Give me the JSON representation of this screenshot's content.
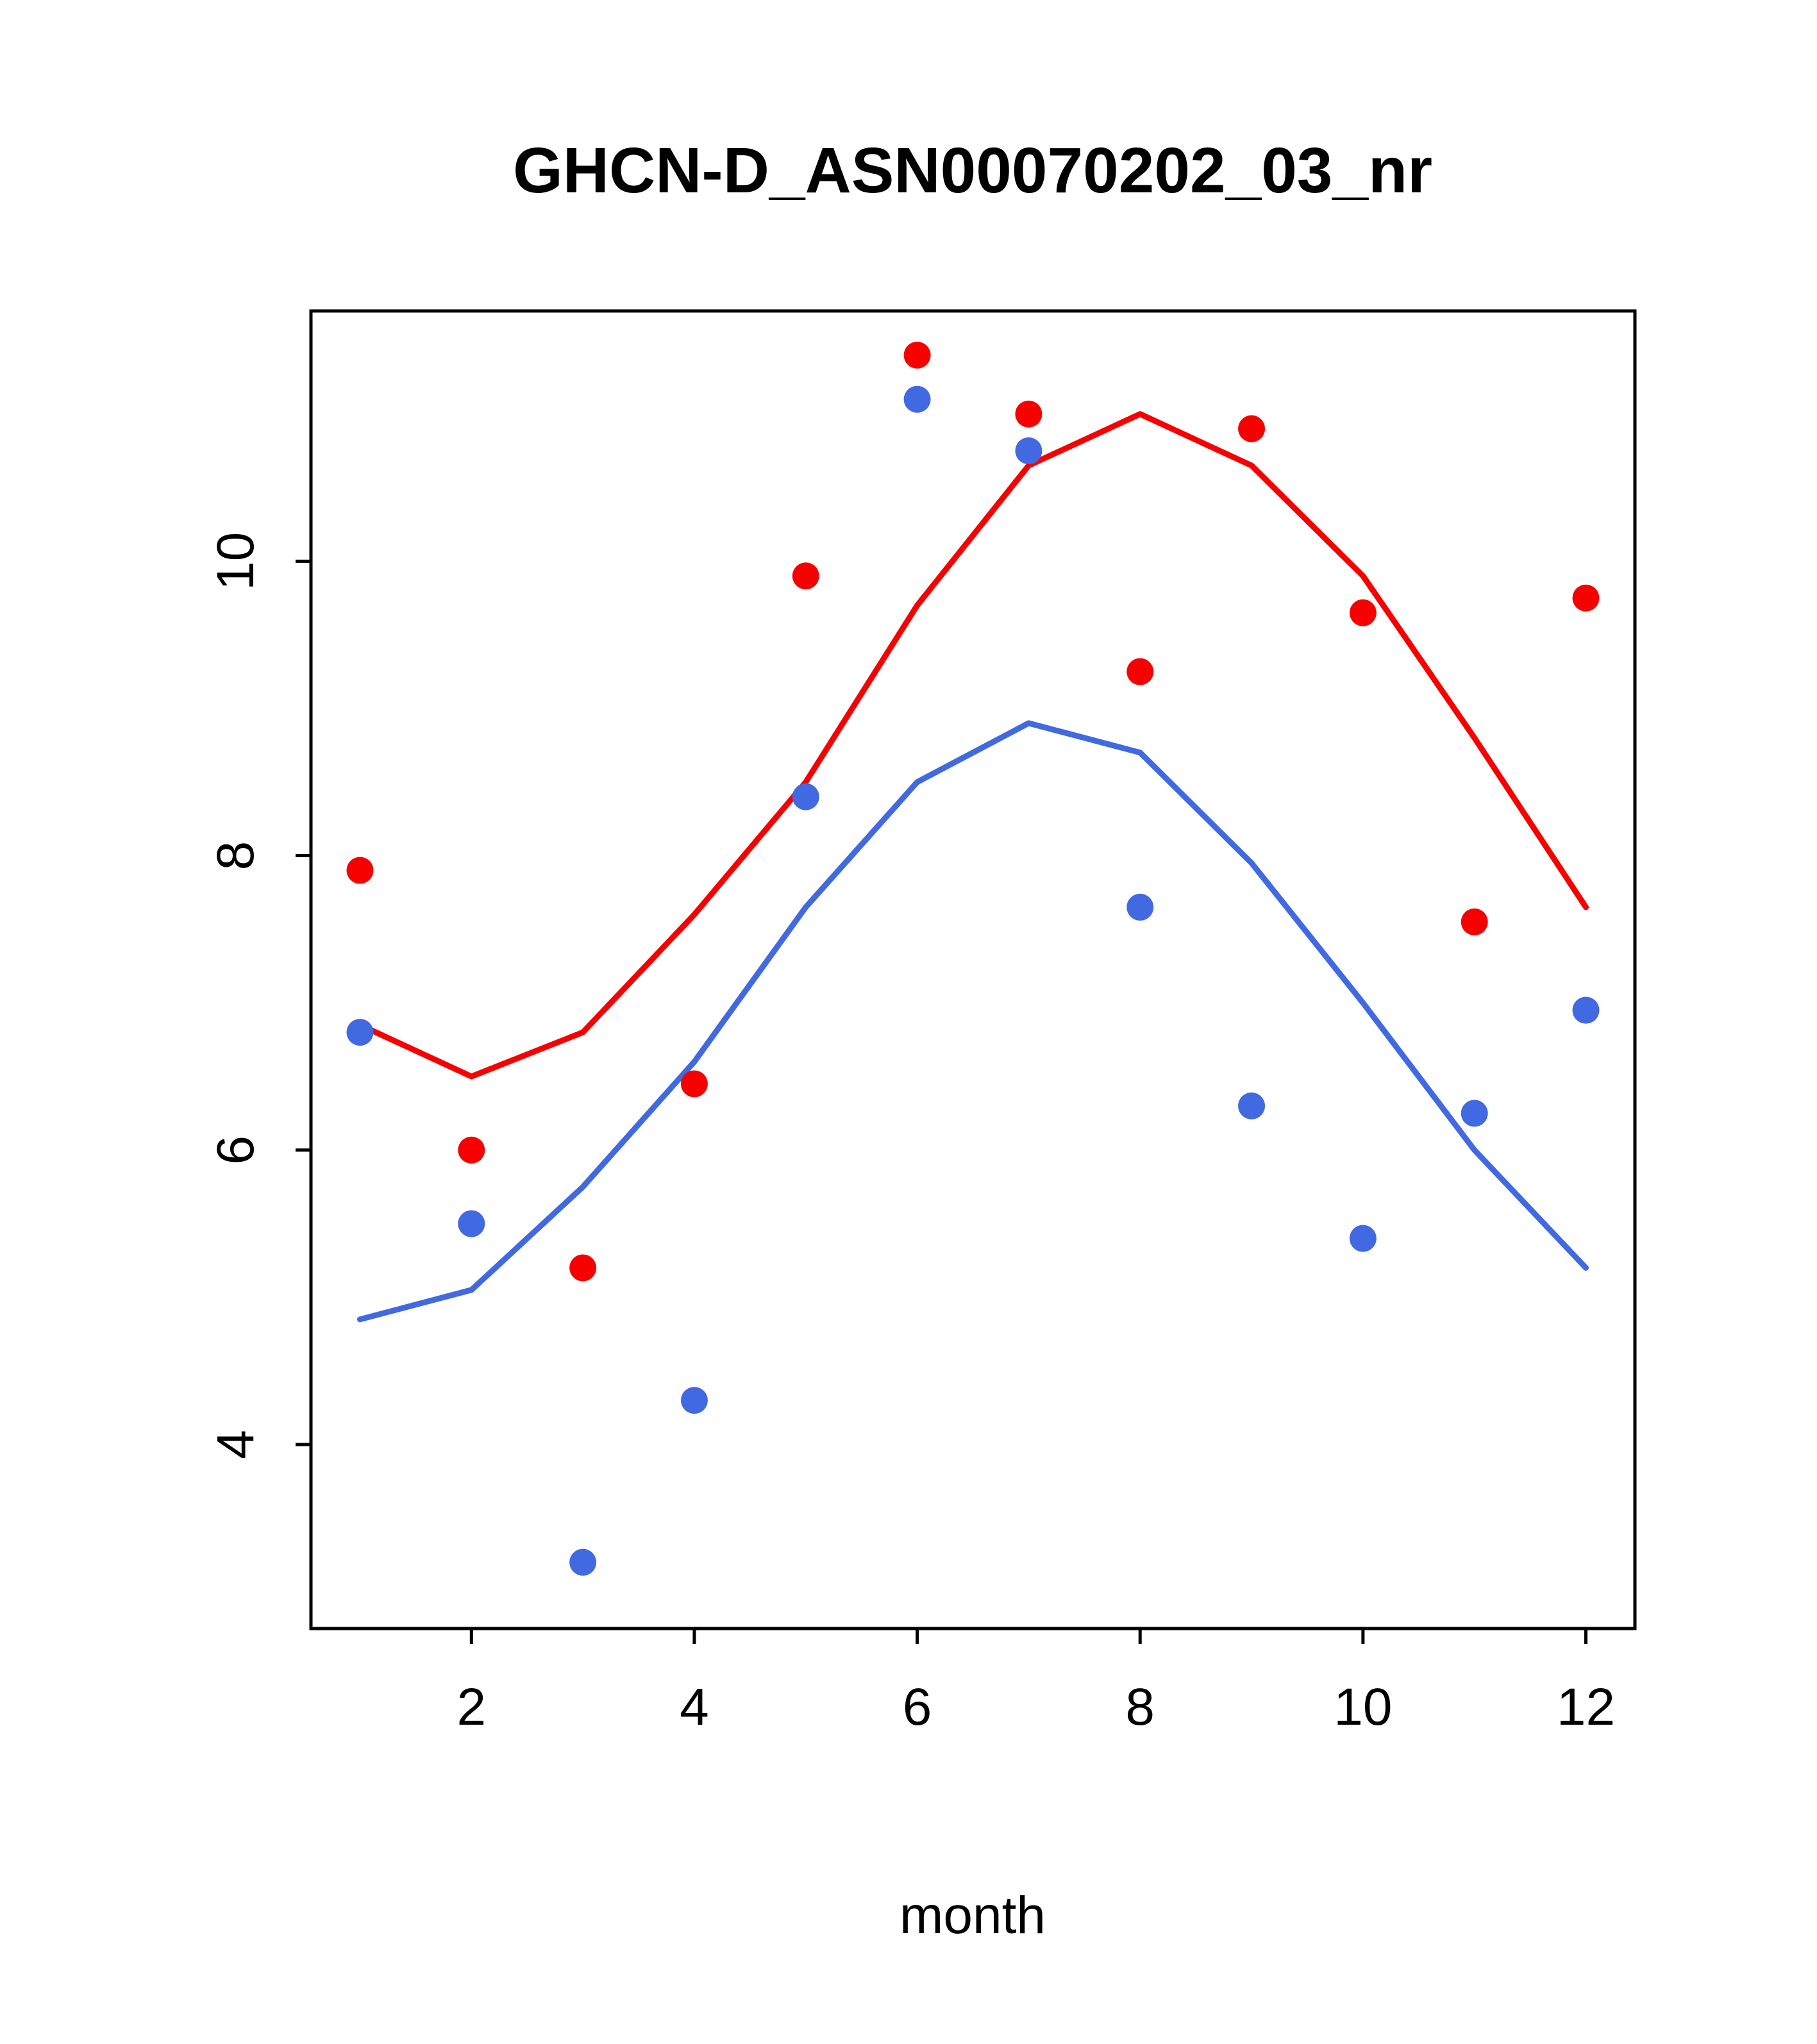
{
  "title": "GHCN-D_ASN00070202_03_nr",
  "chart_data": {
    "type": "line",
    "title": "GHCN-D_ASN00070202_03_nr",
    "xlabel": "month",
    "ylabel": "",
    "x": [
      1,
      2,
      3,
      4,
      5,
      6,
      7,
      8,
      9,
      10,
      11,
      12
    ],
    "xticks": [
      2,
      4,
      6,
      8,
      10,
      12
    ],
    "yticks": [
      4,
      6,
      8,
      10
    ],
    "xlim": [
      0.56,
      12.44
    ],
    "ylim": [
      2.75,
      11.7
    ],
    "grid": false,
    "legend": "none",
    "colors": {
      "red": "#f80000",
      "blue": "#4169e1"
    },
    "series": [
      {
        "name": "red-line",
        "kind": "line",
        "color": "#f80000",
        "values": [
          6.85,
          6.5,
          6.8,
          7.6,
          8.5,
          9.7,
          10.65,
          11.0,
          10.65,
          9.9,
          8.8,
          7.65
        ]
      },
      {
        "name": "blue-line",
        "kind": "line",
        "color": "#4169e1",
        "values": [
          4.85,
          5.05,
          5.75,
          6.6,
          7.65,
          8.5,
          8.9,
          8.7,
          7.95,
          7.0,
          6.0,
          5.2
        ]
      },
      {
        "name": "red-points",
        "kind": "scatter",
        "color": "#f80000",
        "values": [
          7.9,
          6.0,
          5.2,
          6.45,
          9.9,
          11.4,
          11.0,
          9.25,
          10.9,
          9.65,
          7.55,
          9.75
        ]
      },
      {
        "name": "blue-points",
        "kind": "scatter",
        "color": "#4169e1",
        "values": [
          6.8,
          5.5,
          3.2,
          4.3,
          8.4,
          11.1,
          10.75,
          7.65,
          6.3,
          5.4,
          6.25,
          6.95
        ]
      }
    ]
  }
}
